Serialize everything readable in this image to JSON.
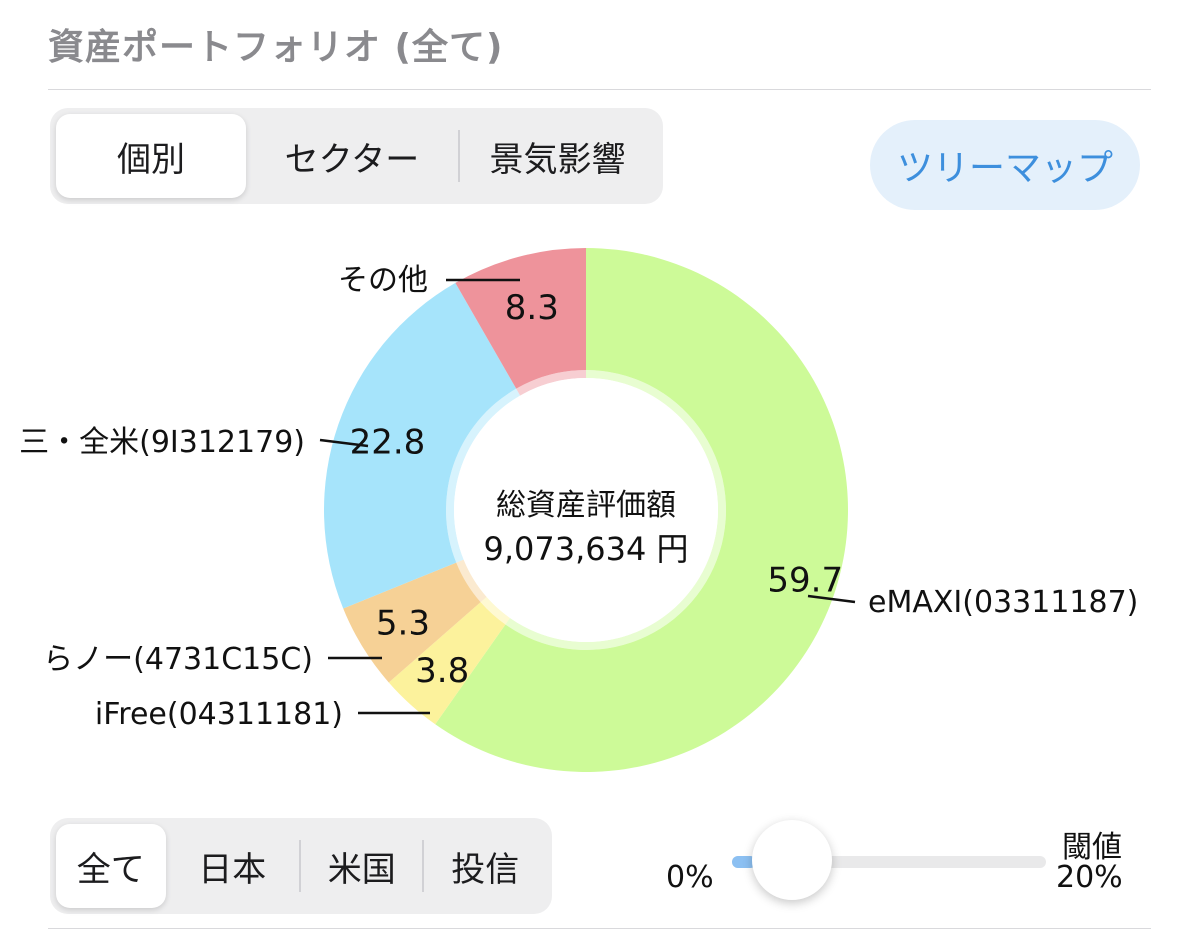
{
  "header": {
    "title": "資産ポートフォリオ (全て)"
  },
  "view_tabs": {
    "items": [
      "個別",
      "セクター",
      "景気影響"
    ],
    "active": 0
  },
  "treemap_button": {
    "label": "ツリーマップ"
  },
  "chart_data": {
    "type": "pie",
    "center_title": "総資産評価額",
    "center_value": "9,073,634 円",
    "slices": [
      {
        "label": "eMAXI(03311187)",
        "value": 59.7,
        "value_label": "59.7",
        "color": "#cdfa98"
      },
      {
        "label": "iFree(04311181)",
        "value": 3.8,
        "value_label": "3.8",
        "color": "#fcf29c"
      },
      {
        "label": "らノー(4731C15C)",
        "value": 5.3,
        "value_label": "5.3",
        "color": "#f6d196"
      },
      {
        "label": "三・全米(9I312179)",
        "value": 22.8,
        "value_label": "22.8",
        "color": "#a6e4fb"
      },
      {
        "label": "その他",
        "value": 8.3,
        "value_label": "8.3",
        "color": "#ee939b"
      }
    ]
  },
  "market_tabs": {
    "items": [
      "全て",
      "日本",
      "米国",
      "投信"
    ],
    "active": 0
  },
  "threshold": {
    "label": "閾値",
    "min_label": "0%",
    "value_label": "20%",
    "level": 0.05
  }
}
